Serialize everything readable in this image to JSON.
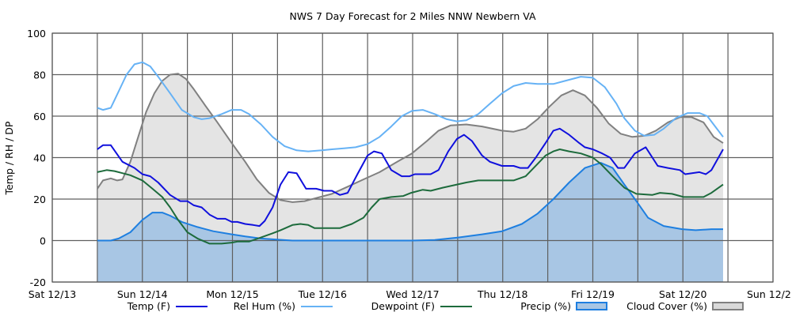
{
  "chart_data": {
    "type": "line",
    "title": "NWS 7 Day Forecast for 2 Miles NNW Newbern VA",
    "ylabel": "Temp / RH / DP",
    "xlabel": "",
    "ylim": [
      -20,
      100
    ],
    "yticks": [
      -20,
      0,
      20,
      40,
      60,
      80,
      100
    ],
    "x_unit": "hours since Sat 12/13 00:00",
    "xlim": [
      0,
      192
    ],
    "x_grid_step_hours": 12,
    "grid": true,
    "legend_position": "bottom",
    "x_tick_labels": [
      {
        "hour": 0,
        "label": "Sat 12/13"
      },
      {
        "hour": 24,
        "label": "Sun 12/14"
      },
      {
        "hour": 48,
        "label": "Mon 12/15"
      },
      {
        "hour": 72,
        "label": "Tue 12/16"
      },
      {
        "hour": 96,
        "label": "Wed 12/17"
      },
      {
        "hour": 120,
        "label": "Thu 12/18"
      },
      {
        "hour": 144,
        "label": "Fri 12/19"
      },
      {
        "hour": 168,
        "label": "Sat 12/20"
      },
      {
        "hour": 192,
        "label": "Sun 12/2"
      }
    ],
    "series": [
      {
        "name": "Cloud Cover (%)",
        "kind": "area",
        "color": "#808080",
        "fill": "#e4e4e4",
        "points": [
          [
            12,
            25
          ],
          [
            13.5,
            29
          ],
          [
            15.6,
            30
          ],
          [
            17.3,
            29
          ],
          [
            18.7,
            29.5
          ],
          [
            20.8,
            38
          ],
          [
            22.9,
            50
          ],
          [
            25,
            62
          ],
          [
            27.2,
            71
          ],
          [
            29.3,
            77
          ],
          [
            31.4,
            80
          ],
          [
            33.5,
            80.5
          ],
          [
            35.6,
            78
          ],
          [
            37.7,
            73
          ],
          [
            40.8,
            65
          ],
          [
            44,
            57
          ],
          [
            47.8,
            47
          ],
          [
            51.4,
            38
          ],
          [
            54.5,
            29.5
          ],
          [
            57.7,
            23
          ],
          [
            60.8,
            19.5
          ],
          [
            64,
            18.5
          ],
          [
            67.2,
            19
          ],
          [
            70.3,
            20.5
          ],
          [
            74.5,
            22.5
          ],
          [
            78.7,
            26
          ],
          [
            82.9,
            29.5
          ],
          [
            87.2,
            33
          ],
          [
            91.4,
            37.5
          ],
          [
            95.8,
            42
          ],
          [
            99.8,
            48
          ],
          [
            102.9,
            53
          ],
          [
            106.1,
            55.5
          ],
          [
            110.3,
            56
          ],
          [
            114.5,
            55
          ],
          [
            119.8,
            53
          ],
          [
            122.9,
            52.5
          ],
          [
            126.1,
            54
          ],
          [
            129.3,
            58.5
          ],
          [
            132.4,
            64.5
          ],
          [
            135.6,
            70
          ],
          [
            138.7,
            72.5
          ],
          [
            141.9,
            70
          ],
          [
            145.1,
            64
          ],
          [
            148.2,
            56.5
          ],
          [
            151.4,
            51.5
          ],
          [
            154.5,
            50
          ],
          [
            157.7,
            50.5
          ],
          [
            160.8,
            53
          ],
          [
            164,
            57
          ],
          [
            167.2,
            59.5
          ],
          [
            170.3,
            59.5
          ],
          [
            173.5,
            57
          ],
          [
            176.2,
            50
          ],
          [
            178.7,
            47
          ]
        ]
      },
      {
        "name": "Precip (%)",
        "kind": "area",
        "color": "#1e7fe0",
        "fill": "#a8c6e4",
        "points": [
          [
            12,
            0
          ],
          [
            15.6,
            0
          ],
          [
            17.7,
            1
          ],
          [
            20.8,
            4
          ],
          [
            24,
            10
          ],
          [
            26.7,
            13.5
          ],
          [
            29.3,
            13.5
          ],
          [
            31.4,
            12
          ],
          [
            34.5,
            9
          ],
          [
            38.7,
            6.5
          ],
          [
            42.9,
            4.5
          ],
          [
            47.8,
            3
          ],
          [
            51.4,
            2
          ],
          [
            55.6,
            1
          ],
          [
            59.8,
            0.5
          ],
          [
            64,
            0
          ],
          [
            70.3,
            0
          ],
          [
            80.8,
            0
          ],
          [
            91.4,
            0
          ],
          [
            95.8,
            0
          ],
          [
            101.9,
            0.3
          ],
          [
            108.2,
            1.5
          ],
          [
            114.5,
            3
          ],
          [
            119.8,
            4.5
          ],
          [
            125.1,
            8
          ],
          [
            129.3,
            13
          ],
          [
            133.5,
            20
          ],
          [
            137.7,
            28
          ],
          [
            141.9,
            35
          ],
          [
            146.1,
            37.5
          ],
          [
            149.3,
            35
          ],
          [
            152.4,
            27
          ],
          [
            155.6,
            19
          ],
          [
            158.7,
            11
          ],
          [
            162.9,
            7
          ],
          [
            167.8,
            5.5
          ],
          [
            171.4,
            5
          ],
          [
            175.6,
            5.5
          ],
          [
            178.7,
            5.5
          ]
        ]
      },
      {
        "name": "Rel Hum (%)",
        "kind": "line",
        "color": "#66b2f5",
        "points": [
          [
            12,
            64
          ],
          [
            13.5,
            63
          ],
          [
            15.6,
            64
          ],
          [
            17.7,
            72
          ],
          [
            19.8,
            80
          ],
          [
            21.9,
            85
          ],
          [
            24,
            86
          ],
          [
            26.1,
            84
          ],
          [
            28.2,
            79
          ],
          [
            31.4,
            71
          ],
          [
            34.5,
            63
          ],
          [
            37.7,
            59.5
          ],
          [
            39.8,
            58.5
          ],
          [
            41.9,
            59
          ],
          [
            45.1,
            61
          ],
          [
            47.8,
            63
          ],
          [
            50.3,
            63
          ],
          [
            52.4,
            61
          ],
          [
            55.6,
            56
          ],
          [
            58.7,
            50
          ],
          [
            61.9,
            45.5
          ],
          [
            65.1,
            43.5
          ],
          [
            68.2,
            43
          ],
          [
            71.8,
            43.5
          ],
          [
            74.5,
            44
          ],
          [
            77.7,
            44.5
          ],
          [
            80.8,
            45
          ],
          [
            84,
            46.5
          ],
          [
            87.2,
            50
          ],
          [
            90.3,
            55
          ],
          [
            93.1,
            60
          ],
          [
            95.8,
            62.5
          ],
          [
            98.7,
            63
          ],
          [
            101.9,
            61
          ],
          [
            105.1,
            58.5
          ],
          [
            107.8,
            57.5
          ],
          [
            110.3,
            58
          ],
          [
            113.5,
            61
          ],
          [
            116.6,
            66
          ],
          [
            119.8,
            71
          ],
          [
            122.9,
            74.5
          ],
          [
            126.1,
            76
          ],
          [
            129.3,
            75.5
          ],
          [
            133.5,
            75.5
          ],
          [
            136.6,
            77
          ],
          [
            140.8,
            79
          ],
          [
            144,
            78.5
          ],
          [
            147.2,
            74
          ],
          [
            150.3,
            66
          ],
          [
            152.4,
            59
          ],
          [
            155.2,
            53
          ],
          [
            157.7,
            50.5
          ],
          [
            160.4,
            51
          ],
          [
            162.9,
            54
          ],
          [
            166.1,
            59
          ],
          [
            169.3,
            61.5
          ],
          [
            172.4,
            61.5
          ],
          [
            174.5,
            60
          ],
          [
            176.6,
            55
          ],
          [
            178.7,
            50
          ]
        ]
      },
      {
        "name": "Dewpoint (F)",
        "kind": "line",
        "color": "#1d6b3c",
        "points": [
          [
            12,
            33
          ],
          [
            14.5,
            34
          ],
          [
            16.6,
            33.5
          ],
          [
            18.7,
            32.5
          ],
          [
            20.8,
            31.5
          ],
          [
            24,
            29
          ],
          [
            26.7,
            25
          ],
          [
            29.3,
            21
          ],
          [
            31.4,
            16
          ],
          [
            33.5,
            10
          ],
          [
            36,
            4
          ],
          [
            38.7,
            1
          ],
          [
            41.9,
            -1.5
          ],
          [
            45.1,
            -1.5
          ],
          [
            47.8,
            -1
          ],
          [
            49.3,
            -0.5
          ],
          [
            52.4,
            -0.5
          ],
          [
            55.6,
            1.5
          ],
          [
            58.7,
            3.5
          ],
          [
            60.8,
            5
          ],
          [
            64,
            7.5
          ],
          [
            66.1,
            8
          ],
          [
            68.2,
            7.5
          ],
          [
            69.9,
            6
          ],
          [
            73.5,
            6
          ],
          [
            76.6,
            6
          ],
          [
            79.8,
            8
          ],
          [
            82.9,
            11
          ],
          [
            85.1,
            16
          ],
          [
            87.2,
            20
          ],
          [
            90.3,
            21
          ],
          [
            93.5,
            21.5
          ],
          [
            95.6,
            23
          ],
          [
            98.7,
            24.5
          ],
          [
            100.8,
            24
          ],
          [
            104,
            25.5
          ],
          [
            107.8,
            27
          ],
          [
            110.3,
            28
          ],
          [
            113.5,
            29
          ],
          [
            116.6,
            29
          ],
          [
            119.8,
            29
          ],
          [
            122.9,
            29
          ],
          [
            126.1,
            31
          ],
          [
            129.3,
            37
          ],
          [
            131.4,
            41
          ],
          [
            133.5,
            43
          ],
          [
            135.2,
            44
          ],
          [
            137.7,
            43
          ],
          [
            140.8,
            42
          ],
          [
            144,
            40
          ],
          [
            146.1,
            37
          ],
          [
            149.3,
            31
          ],
          [
            152.4,
            25.5
          ],
          [
            155.6,
            22.5
          ],
          [
            159.8,
            22
          ],
          [
            161.9,
            23
          ],
          [
            165.1,
            22.5
          ],
          [
            168.2,
            21
          ],
          [
            173.5,
            21
          ],
          [
            175.6,
            23
          ],
          [
            178.7,
            27
          ]
        ]
      },
      {
        "name": "Temp (F)",
        "kind": "line",
        "color": "#1010dd",
        "points": [
          [
            12,
            44
          ],
          [
            13.5,
            46
          ],
          [
            15.6,
            46
          ],
          [
            18.7,
            38
          ],
          [
            21.9,
            35
          ],
          [
            24,
            32
          ],
          [
            26.1,
            31
          ],
          [
            28.2,
            28
          ],
          [
            31.4,
            22
          ],
          [
            34.1,
            19
          ],
          [
            36,
            19
          ],
          [
            37.7,
            17
          ],
          [
            39.8,
            16
          ],
          [
            41.9,
            12.5
          ],
          [
            44,
            10.5
          ],
          [
            46.1,
            10.5
          ],
          [
            47.8,
            9
          ],
          [
            49.3,
            9
          ],
          [
            51.4,
            8
          ],
          [
            53.5,
            7.5
          ],
          [
            55.2,
            7
          ],
          [
            56.6,
            9.5
          ],
          [
            58.7,
            16
          ],
          [
            60.8,
            27
          ],
          [
            62.9,
            33
          ],
          [
            65.1,
            32.5
          ],
          [
            67.6,
            25
          ],
          [
            70.3,
            25
          ],
          [
            72.4,
            24
          ],
          [
            74.5,
            24
          ],
          [
            76.6,
            22
          ],
          [
            78.7,
            23
          ],
          [
            81.3,
            32
          ],
          [
            84,
            41
          ],
          [
            85.7,
            43
          ],
          [
            87.8,
            42
          ],
          [
            90.3,
            34
          ],
          [
            93.1,
            31
          ],
          [
            95.2,
            31
          ],
          [
            96.6,
            32
          ],
          [
            100.8,
            32
          ],
          [
            102.9,
            34
          ],
          [
            105.5,
            43
          ],
          [
            107.8,
            49
          ],
          [
            109.7,
            51
          ],
          [
            111.8,
            48
          ],
          [
            114.5,
            41
          ],
          [
            116.6,
            38
          ],
          [
            119.8,
            36
          ],
          [
            122.9,
            36
          ],
          [
            124.6,
            35
          ],
          [
            126.7,
            35
          ],
          [
            128.8,
            40
          ],
          [
            131.4,
            47
          ],
          [
            133.5,
            53
          ],
          [
            135.2,
            54
          ],
          [
            137.7,
            51
          ],
          [
            140.4,
            47
          ],
          [
            141.9,
            45
          ],
          [
            144,
            44
          ],
          [
            146.5,
            42
          ],
          [
            148.6,
            40
          ],
          [
            150.7,
            35
          ],
          [
            152.4,
            35
          ],
          [
            155.2,
            42
          ],
          [
            158.1,
            45
          ],
          [
            161.3,
            36
          ],
          [
            164,
            35
          ],
          [
            167.2,
            34
          ],
          [
            168.6,
            32
          ],
          [
            172.4,
            33
          ],
          [
            174.1,
            32
          ],
          [
            175.6,
            34
          ],
          [
            178.7,
            44
          ]
        ]
      }
    ],
    "legend": [
      {
        "label": "Temp (F)",
        "kind": "line",
        "color": "#1010dd"
      },
      {
        "label": "Rel Hum (%)",
        "kind": "line",
        "color": "#66b2f5"
      },
      {
        "label": "Dewpoint (F)",
        "kind": "line",
        "color": "#1d6b3c"
      },
      {
        "label": "Precip (%)",
        "kind": "box",
        "color": "#1e7fe0",
        "fill": "#a8c6e4"
      },
      {
        "label": "Cloud Cover (%)",
        "kind": "box",
        "color": "#808080",
        "fill": "#d9d9d9"
      }
    ]
  }
}
